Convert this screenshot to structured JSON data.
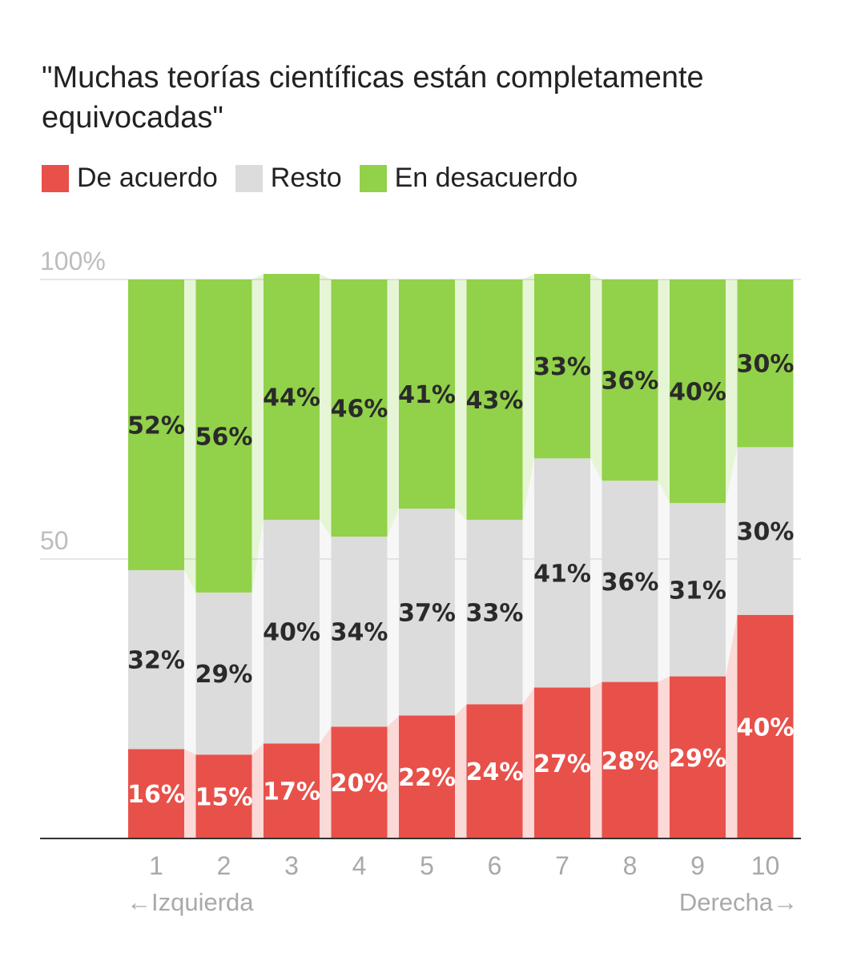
{
  "chart_data": {
    "type": "bar",
    "stacked": true,
    "title": "\"Muchas teorías científicas están completamente equivocadas\"",
    "categories": [
      "1",
      "2",
      "3",
      "4",
      "5",
      "6",
      "7",
      "8",
      "9",
      "10"
    ],
    "x_end_labels": {
      "left": "←Izquierda",
      "right": "Derecha→"
    },
    "ylim": [
      0,
      100
    ],
    "y_ticks": [
      {
        "value": 100,
        "label": "100%"
      },
      {
        "value": 50,
        "label": "50"
      }
    ],
    "grid": true,
    "legend_position": "top-left",
    "series": [
      {
        "name": "De acuerdo",
        "color": "#e8504a",
        "label_color": "#ffffff",
        "values": [
          16,
          15,
          17,
          20,
          22,
          24,
          27,
          28,
          29,
          40
        ]
      },
      {
        "name": "Resto",
        "color": "#dcdcdc",
        "label_color": "#2a2a2a",
        "values": [
          32,
          29,
          40,
          34,
          37,
          33,
          41,
          36,
          31,
          30
        ]
      },
      {
        "name": "En desacuerdo",
        "color": "#92d14a",
        "label_color": "#2a2a2a",
        "values": [
          52,
          56,
          44,
          46,
          41,
          43,
          33,
          36,
          40,
          30
        ]
      }
    ]
  }
}
